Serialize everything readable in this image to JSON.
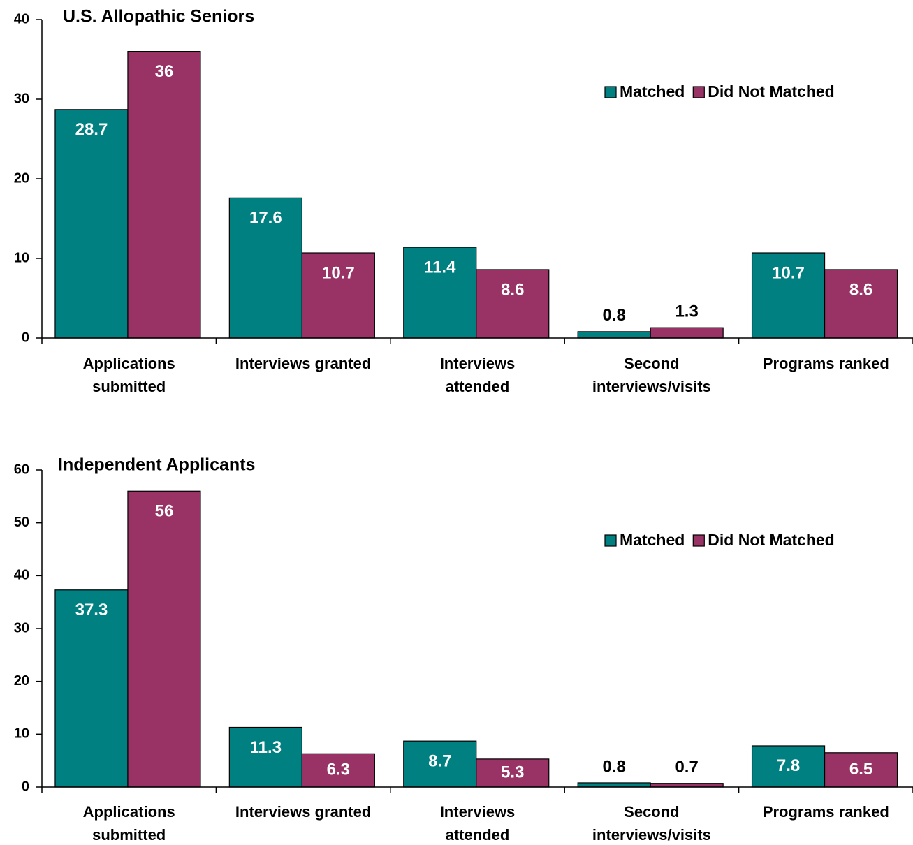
{
  "chart_data": [
    {
      "type": "bar",
      "title": "U.S. Allopathic Seniors",
      "categories": [
        "Applications\nsubmitted",
        "Interviews granted",
        "Interviews\nattended",
        "Second\ninterviews/visits",
        "Programs ranked"
      ],
      "series": [
        {
          "name": "Matched",
          "color": "#008080",
          "values": [
            28.7,
            17.6,
            11.4,
            0.8,
            10.7
          ]
        },
        {
          "name": "Did Not Matched",
          "color": "#993366",
          "values": [
            36,
            10.7,
            8.6,
            1.3,
            8.6
          ]
        }
      ],
      "ylim": [
        0,
        40
      ],
      "yticks": [
        0,
        10,
        20,
        30,
        40
      ],
      "legend": "upper right"
    },
    {
      "type": "bar",
      "title": "Independent Applicants",
      "categories": [
        "Applications\nsubmitted",
        "Interviews granted",
        "Interviews\nattended",
        "Second\ninterviews/visits",
        "Programs ranked"
      ],
      "series": [
        {
          "name": "Matched",
          "color": "#008080",
          "values": [
            37.3,
            11.3,
            8.7,
            0.8,
            7.8
          ]
        },
        {
          "name": "Did Not Matched",
          "color": "#993366",
          "values": [
            56,
            6.3,
            5.3,
            0.7,
            6.5
          ]
        }
      ],
      "ylim": [
        0,
        60
      ],
      "yticks": [
        0,
        10,
        20,
        30,
        40,
        50,
        60
      ],
      "legend": "upper right"
    }
  ]
}
